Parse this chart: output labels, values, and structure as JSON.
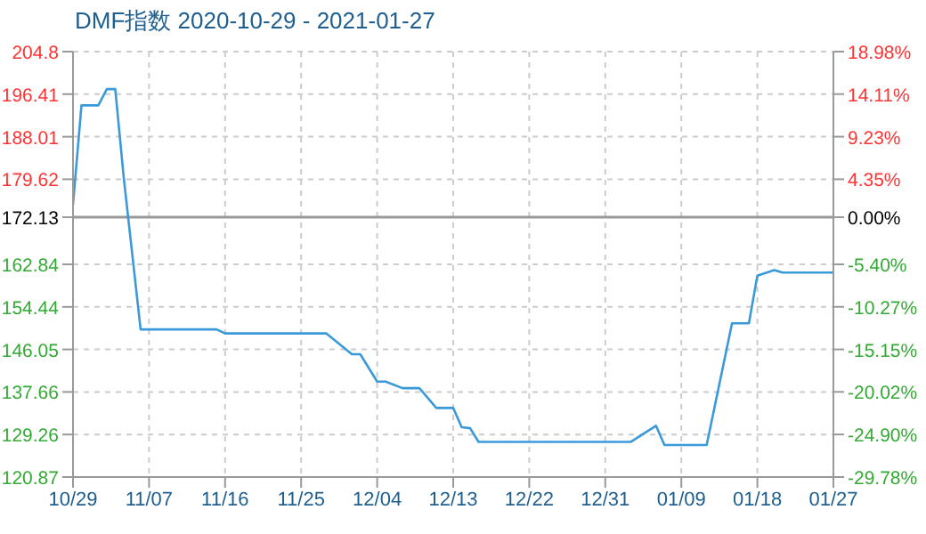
{
  "chart_data": {
    "type": "line",
    "title": "DMF指数 2020-10-29 - 2021-01-27",
    "x": [
      "2020-10-29",
      "2020-10-30",
      "2020-11-01",
      "2020-11-02",
      "2020-11-03",
      "2020-11-04",
      "2020-11-05",
      "2020-11-06",
      "2020-11-15",
      "2020-11-16",
      "2020-11-28",
      "2020-12-01",
      "2020-12-02",
      "2020-12-04",
      "2020-12-05",
      "2020-12-07",
      "2020-12-09",
      "2020-12-11",
      "2020-12-13",
      "2020-12-14",
      "2020-12-15",
      "2020-12-16",
      "2021-01-03",
      "2021-01-06",
      "2021-01-07",
      "2021-01-12",
      "2021-01-15",
      "2021-01-17",
      "2021-01-18",
      "2021-01-20",
      "2021-01-21",
      "2021-01-27"
    ],
    "series": [
      {
        "color": "#3a9ad9",
        "values": [
          174.6,
          194.2,
          194.2,
          197.4,
          197.4,
          180.0,
          165.0,
          150.0,
          150.0,
          149.2,
          149.2,
          145.1,
          145.1,
          139.7,
          139.7,
          138.4,
          138.4,
          134.5,
          134.5,
          130.7,
          130.5,
          127.8,
          127.8,
          131.0,
          127.2,
          127.2,
          151.2,
          151.2,
          160.6,
          161.7,
          161.2,
          161.2
        ]
      }
    ],
    "xlim": [
      "2020-10-29",
      "2021-01-27"
    ],
    "xticks": [
      {
        "value": "2020-10-29",
        "label": "10/29"
      },
      {
        "value": "2020-11-07",
        "label": "11/07"
      },
      {
        "value": "2020-11-16",
        "label": "11/16"
      },
      {
        "value": "2020-11-25",
        "label": "11/25"
      },
      {
        "value": "2020-12-04",
        "label": "12/04"
      },
      {
        "value": "2020-12-13",
        "label": "12/13"
      },
      {
        "value": "2020-12-22",
        "label": "12/22"
      },
      {
        "value": "2020-12-31",
        "label": "12/31"
      },
      {
        "value": "2021-01-09",
        "label": "01/09"
      },
      {
        "value": "2021-01-18",
        "label": "01/18"
      },
      {
        "value": "2021-01-27",
        "label": "01/27"
      }
    ],
    "ylim": [
      120.87,
      204.8
    ],
    "yticks": [
      120.87,
      129.26,
      137.66,
      146.05,
      154.44,
      162.84,
      172.13,
      179.62,
      188.01,
      196.41,
      204.8
    ],
    "y2lim": [
      -29.78,
      18.98
    ],
    "y2ticks": [
      {
        "value": -29.78,
        "label": "-29.78%"
      },
      {
        "value": -24.9,
        "label": "-24.90%"
      },
      {
        "value": -20.02,
        "label": "-20.02%"
      },
      {
        "value": -15.15,
        "label": "-15.15%"
      },
      {
        "value": -10.27,
        "label": "-10.27%"
      },
      {
        "value": -5.4,
        "label": "-5.40%"
      },
      {
        "value": 0,
        "label": "0.00%"
      },
      {
        "value": 4.35,
        "label": "4.35%"
      },
      {
        "value": 9.23,
        "label": "9.23%"
      },
      {
        "value": 14.11,
        "label": "14.11%"
      },
      {
        "value": 18.98,
        "label": "18.98%"
      }
    ],
    "ref_lines": [
      {
        "axis": "y",
        "value": 172.13,
        "color": "#999999"
      }
    ],
    "grid": true,
    "legend": false,
    "marker": "none",
    "line_style": "solid"
  }
}
